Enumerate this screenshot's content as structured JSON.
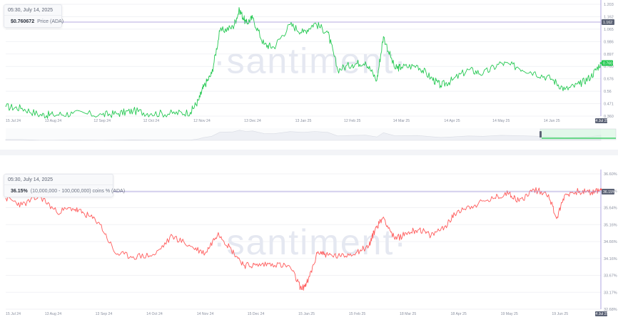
{
  "top_tooltip": {
    "date": "05:30, July 14, 2025",
    "value": "$0.760672",
    "label": "Price (ADA)"
  },
  "bottom_tooltip": {
    "date": "05:30, July 14, 2025",
    "value": "36.15%",
    "label": "(10,000,000 - 100,000,000) coins % (ADA)"
  },
  "watermark": "·santiment·",
  "toolbar": {
    "left_icons": [
      "trend-line-icon",
      "horizontal-line-icon",
      "vertical-line-icon",
      "note-icon",
      "emoji-icon",
      "eye-icon"
    ],
    "right_icons": [
      "download-icon",
      "embed-code-icon",
      "settings-icon",
      "fullscreen-icon"
    ]
  },
  "colors": {
    "price": "#26c953",
    "holders": "#ff5b5b",
    "crosshair": "#9b8fd9",
    "navigator": "#26c953"
  },
  "chart_data": [
    {
      "type": "line",
      "series": [
        {
          "name": "Price (ADA)",
          "color": "#26c953"
        }
      ],
      "x_ticks": [
        "15 Jul 24",
        "13 Aug 24",
        "12 Sep 24",
        "12 Oct 24",
        "12 Nov 24",
        "13 Dec 24",
        "13 Jan 25",
        "12 Feb 25",
        "14 Mar 25",
        "14 Apr 25",
        "14 May 25",
        "14 Jun 25",
        "14 Jul 25"
      ],
      "y_ticks": [
        "1.203",
        "1.162",
        "1.065",
        "0.986",
        "0.897",
        "0.760",
        "0.676",
        "0.56",
        "0.471",
        "0.360"
      ],
      "ylim": [
        0.36,
        1.203
      ],
      "current_label": "1.162",
      "last_value_label": "0.760",
      "points": [
        [
          "15 Jul 24",
          0.43
        ],
        [
          "25 Jul 24",
          0.42
        ],
        [
          "5 Aug 24",
          0.37
        ],
        [
          "13 Aug 24",
          0.37
        ],
        [
          "25 Aug 24",
          0.38
        ],
        [
          "12 Sep 24",
          0.37
        ],
        [
          "22 Sep 24",
          0.38
        ],
        [
          "1 Oct 24",
          0.4
        ],
        [
          "12 Oct 24",
          0.38
        ],
        [
          "25 Oct 24",
          0.38
        ],
        [
          "5 Nov 24",
          0.39
        ],
        [
          "10 Nov 24",
          0.48
        ],
        [
          "13 Nov 24",
          0.58
        ],
        [
          "18 Nov 24",
          0.68
        ],
        [
          "23 Nov 24",
          1.0
        ],
        [
          "1 Dec 24",
          1.03
        ],
        [
          "5 Dec 24",
          1.16
        ],
        [
          "9 Dec 24",
          1.06
        ],
        [
          "13 Dec 24",
          1.1
        ],
        [
          "20 Dec 24",
          0.9
        ],
        [
          "26 Dec 24",
          0.88
        ],
        [
          "5 Jan 25",
          1.05
        ],
        [
          "13 Jan 25",
          0.99
        ],
        [
          "20 Jan 25",
          1.06
        ],
        [
          "28 Jan 25",
          0.99
        ],
        [
          "3 Feb 25",
          0.71
        ],
        [
          "12 Feb 25",
          0.75
        ],
        [
          "20 Feb 25",
          0.77
        ],
        [
          "27 Feb 25",
          0.63
        ],
        [
          "3 Mar 25",
          0.96
        ],
        [
          "10 Mar 25",
          0.72
        ],
        [
          "14 Mar 25",
          0.73
        ],
        [
          "24 Mar 25",
          0.74
        ],
        [
          "1 Apr 25",
          0.65
        ],
        [
          "7 Apr 25",
          0.59
        ],
        [
          "14 Apr 25",
          0.63
        ],
        [
          "24 Apr 25",
          0.71
        ],
        [
          "3 May 25",
          0.68
        ],
        [
          "14 May 25",
          0.76
        ],
        [
          "24 May 25",
          0.73
        ],
        [
          "3 Jun 25",
          0.69
        ],
        [
          "14 Jun 25",
          0.64
        ],
        [
          "22 Jun 25",
          0.56
        ],
        [
          "1 Jul 25",
          0.6
        ],
        [
          "8 Jul 25",
          0.66
        ],
        [
          "14 Jul 25",
          0.76
        ]
      ]
    },
    {
      "type": "line",
      "series": [
        {
          "name": "(10,000,000 - 100,000,000) coins % (ADA)",
          "color": "#ff5b5b"
        }
      ],
      "x_ticks": [
        "15 Jul 24",
        "13 Aug 24",
        "13 Sep 24",
        "14 Oct 24",
        "14 Nov 24",
        "15 Dec 24",
        "15 Jan 25",
        "15 Feb 25",
        "18 Mar 25",
        "18 Apr 25",
        "19 May 25",
        "19 Jun 25",
        "14 Jul 25"
      ],
      "y_ticks": [
        "36.60%",
        "36.15%",
        "35.64%",
        "35.16%",
        "34.66%",
        "34.16%",
        "33.67%",
        "33.17%",
        "32.68%"
      ],
      "ylim": [
        32.68,
        36.6
      ],
      "current_label": "36.15%",
      "points": [
        [
          "15 Jul 24",
          35.9
        ],
        [
          "25 Jul 24",
          35.7
        ],
        [
          "5 Aug 24",
          35.95
        ],
        [
          "15 Aug 24",
          35.5
        ],
        [
          "25 Aug 24",
          35.6
        ],
        [
          "1 Sep 24",
          35.45
        ],
        [
          "10 Sep 24",
          35.2
        ],
        [
          "20 Sep 24",
          34.3
        ],
        [
          "1 Oct 24",
          34.2
        ],
        [
          "14 Oct 24",
          34.25
        ],
        [
          "25 Oct 24",
          34.8
        ],
        [
          "5 Nov 24",
          34.5
        ],
        [
          "14 Nov 24",
          34.3
        ],
        [
          "22 Nov 24",
          34.9
        ],
        [
          "30 Nov 24",
          34.4
        ],
        [
          "8 Dec 24",
          33.95
        ],
        [
          "15 Dec 24",
          33.95
        ],
        [
          "25 Dec 24",
          34.0
        ],
        [
          "5 Jan 25",
          33.9
        ],
        [
          "12 Jan 25",
          33.25
        ],
        [
          "16 Jan 25",
          33.5
        ],
        [
          "22 Jan 25",
          34.35
        ],
        [
          "28 Jan 25",
          34.25
        ],
        [
          "5 Feb 25",
          34.2
        ],
        [
          "15 Feb 25",
          34.35
        ],
        [
          "22 Feb 25",
          34.5
        ],
        [
          "26 Feb 25",
          35.0
        ],
        [
          "3 Mar 25",
          35.35
        ],
        [
          "10 Mar 25",
          34.7
        ],
        [
          "18 Mar 25",
          34.9
        ],
        [
          "25 Mar 25",
          35.0
        ],
        [
          "1 Apr 25",
          34.8
        ],
        [
          "10 Apr 25",
          35.1
        ],
        [
          "18 Apr 25",
          35.55
        ],
        [
          "28 Apr 25",
          35.7
        ],
        [
          "10 May 25",
          35.9
        ],
        [
          "19 May 25",
          36.05
        ],
        [
          "25 May 25",
          35.8
        ],
        [
          "3 Jun 25",
          36.15
        ],
        [
          "12 Jun 25",
          36.0
        ],
        [
          "17 Jun 25",
          35.3
        ],
        [
          "22 Jun 25",
          36.0
        ],
        [
          "1 Jul 25",
          36.1
        ],
        [
          "8 Jul 25",
          36.05
        ],
        [
          "14 Jul 25",
          36.15
        ]
      ]
    }
  ]
}
